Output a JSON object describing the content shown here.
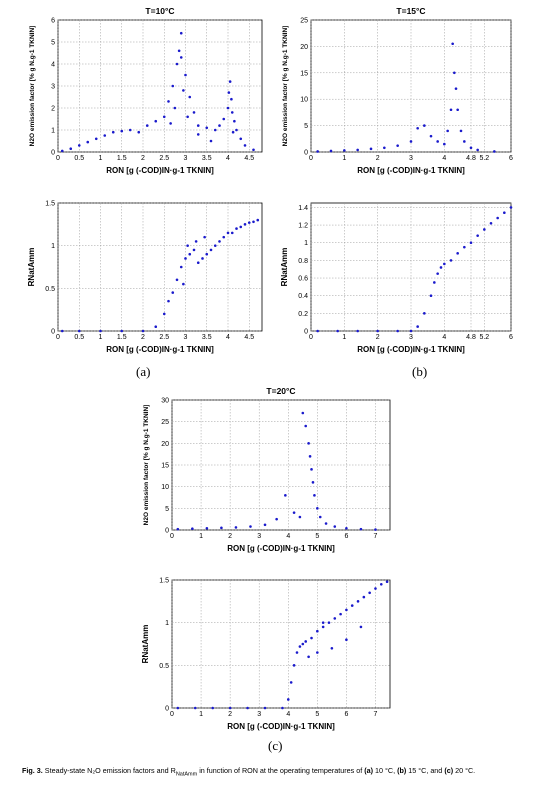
{
  "labels": {
    "a": "(a)",
    "b": "(b)",
    "c": "(c)"
  },
  "caption": {
    "figure": "Fig. 3.",
    "text": "Steady-state N₂O emission factors and R",
    "natamm_sub": "NatAmm",
    "text2": " in function of RON at the operating temperatures of ",
    "a": "(a)",
    "a_temp": " 10 °C, ",
    "b": "(b)",
    "b_temp": " 15 °C, and ",
    "c": "(c)",
    "c_temp": " 20 °C."
  },
  "chart_data": [
    {
      "id": "a-top",
      "type": "scatter",
      "title": "T=10°C",
      "xlabel": "RON [g (-COD)IN·g-1 TKNIN]",
      "ylabel": "N2O emission factor [% g N.g-1 TKNIN]",
      "xlim": [
        0,
        4.8
      ],
      "ylim": [
        0,
        6
      ],
      "xticks": [
        "0",
        "0.5",
        "1",
        "1.5",
        "2",
        "2.5",
        "3",
        "3.5",
        "4",
        "4.5"
      ],
      "xtick_values": [
        0,
        0.5,
        1,
        1.5,
        2,
        2.5,
        3,
        3.5,
        4,
        4.5
      ],
      "yticks": [
        "0",
        "1",
        "2",
        "3",
        "4",
        "5",
        "6"
      ],
      "ytick_values": [
        0,
        1,
        2,
        3,
        4,
        5,
        6
      ],
      "grid": true,
      "series": [
        {
          "color": "#1a1acc",
          "x": [
            0.1,
            0.3,
            0.5,
            0.7,
            0.9,
            1.1,
            1.3,
            1.5,
            1.7,
            1.9,
            2.1,
            2.3,
            2.5,
            2.6,
            2.7,
            2.8,
            2.9,
            3.0,
            3.1,
            3.2,
            3.3,
            3.5,
            3.7,
            3.8,
            3.9,
            4.0,
            4.05,
            4.1,
            4.15,
            4.2,
            4.3,
            4.4,
            4.6,
            2.85,
            2.9,
            2.95,
            2.75,
            2.65,
            3.05,
            3.3,
            3.6,
            4.02,
            4.08,
            4.12
          ],
          "y": [
            0.05,
            0.15,
            0.3,
            0.45,
            0.6,
            0.75,
            0.9,
            0.95,
            1.0,
            0.9,
            1.2,
            1.4,
            1.6,
            2.3,
            3.0,
            4.0,
            5.4,
            3.5,
            2.5,
            1.8,
            1.2,
            1.1,
            1.0,
            1.2,
            1.5,
            2.0,
            3.2,
            1.8,
            1.4,
            1.0,
            0.6,
            0.3,
            0.1,
            4.6,
            4.3,
            2.8,
            2.0,
            1.3,
            1.6,
            0.8,
            0.5,
            2.7,
            2.4,
            0.9
          ]
        }
      ]
    },
    {
      "id": "b-top",
      "type": "scatter",
      "title": "T=15°C",
      "xlabel": "RON [g (-COD)IN·g-1 TKNIN]",
      "ylabel": "N2O emission factor [% g N.g-1 TKNIN]",
      "xlim": [
        0,
        6
      ],
      "ylim": [
        0,
        25
      ],
      "xticks": [
        "0",
        "1",
        "2",
        "3",
        "4",
        "4.8",
        "5.2",
        "6"
      ],
      "xtick_values": [
        0,
        1,
        2,
        3,
        4,
        4.8,
        5.2,
        6
      ],
      "yticks": [
        "0",
        "5",
        "10",
        "15",
        "20",
        "25"
      ],
      "ytick_values": [
        0,
        5,
        10,
        15,
        20,
        25
      ],
      "grid": true,
      "series": [
        {
          "color": "#1a1acc",
          "x": [
            0.2,
            0.6,
            1.0,
            1.4,
            1.8,
            2.2,
            2.6,
            3.0,
            3.2,
            3.4,
            3.6,
            3.8,
            4.0,
            4.1,
            4.2,
            4.25,
            4.3,
            4.35,
            4.4,
            4.5,
            4.6,
            4.8,
            5.0,
            5.5
          ],
          "y": [
            0.1,
            0.2,
            0.3,
            0.4,
            0.6,
            0.8,
            1.2,
            2.0,
            4.5,
            5.0,
            3.0,
            2.0,
            1.5,
            4.0,
            8.0,
            20.5,
            15.0,
            12.0,
            8.0,
            4.0,
            2.0,
            0.8,
            0.4,
            0.1
          ]
        }
      ]
    },
    {
      "id": "a-bottom",
      "type": "scatter",
      "title": "",
      "xlabel": "RON [g (-COD)IN·g-1 TKNIN]",
      "ylabel": "RNatAmm",
      "xlim": [
        0,
        4.8
      ],
      "ylim": [
        0,
        1.5
      ],
      "xticks": [
        "0",
        "0.5",
        "1",
        "1.5",
        "2",
        "2.5",
        "3",
        "3.5",
        "4",
        "4.5"
      ],
      "xtick_values": [
        0,
        0.5,
        1,
        1.5,
        2,
        2.5,
        3,
        3.5,
        4,
        4.5
      ],
      "yticks": [
        "0",
        "0.5",
        "1",
        "1.5"
      ],
      "ytick_values": [
        0,
        0.5,
        1,
        1.5
      ],
      "grid": true,
      "series": [
        {
          "color": "#1a1acc",
          "x": [
            0.1,
            0.5,
            1.0,
            1.5,
            2.0,
            2.3,
            2.5,
            2.6,
            2.7,
            2.8,
            2.9,
            3.0,
            3.1,
            3.2,
            3.3,
            3.4,
            3.5,
            3.6,
            3.7,
            3.8,
            3.9,
            4.0,
            4.1,
            4.2,
            4.3,
            4.4,
            4.5,
            4.6,
            4.7,
            2.95,
            3.05,
            3.25,
            3.45
          ],
          "y": [
            0.0,
            0.0,
            0.0,
            0.0,
            0.0,
            0.05,
            0.2,
            0.35,
            0.45,
            0.6,
            0.75,
            0.85,
            0.9,
            0.95,
            0.8,
            0.85,
            0.9,
            0.95,
            1.0,
            1.05,
            1.1,
            1.15,
            1.15,
            1.2,
            1.22,
            1.25,
            1.27,
            1.28,
            1.3,
            0.55,
            1.0,
            1.05,
            1.1
          ]
        }
      ]
    },
    {
      "id": "b-bottom",
      "type": "scatter",
      "title": "",
      "xlabel": "RON [g (-COD)IN·g-1 TKNIN]",
      "ylabel": "RNatAmm",
      "xlim": [
        0,
        6
      ],
      "ylim": [
        0,
        1.45
      ],
      "xticks": [
        "0",
        "1",
        "2",
        "3",
        "4",
        "4.8",
        "5.2",
        "6"
      ],
      "xtick_values": [
        0,
        1,
        2,
        3,
        4,
        4.8,
        5.2,
        6
      ],
      "yticks": [
        "0",
        "0.2",
        "0.4",
        "0.6",
        "0.8",
        "1",
        "1.2",
        "1.4"
      ],
      "ytick_values": [
        0,
        0.2,
        0.4,
        0.6,
        0.8,
        1,
        1.2,
        1.4
      ],
      "grid": true,
      "series": [
        {
          "color": "#1a1acc",
          "x": [
            0.2,
            0.8,
            1.4,
            2.0,
            2.6,
            3.0,
            3.2,
            3.4,
            3.6,
            3.7,
            3.8,
            3.9,
            4.0,
            4.2,
            4.4,
            4.6,
            4.8,
            5.0,
            5.2,
            5.4,
            5.6,
            5.8,
            6.0
          ],
          "y": [
            0.0,
            0.0,
            0.0,
            0.0,
            0.0,
            0.0,
            0.05,
            0.2,
            0.4,
            0.55,
            0.65,
            0.72,
            0.76,
            0.8,
            0.88,
            0.95,
            1.0,
            1.08,
            1.15,
            1.22,
            1.28,
            1.34,
            1.4
          ]
        }
      ]
    },
    {
      "id": "c-top",
      "type": "scatter",
      "title": "T=20°C",
      "xlabel": "RON [g (-COD)IN·g-1 TKNIN]",
      "ylabel": "N2O emission factor [% g N.g-1 TKNIN]",
      "xlim": [
        0,
        7.5
      ],
      "ylim": [
        0,
        30
      ],
      "xticks": [
        "0",
        "1",
        "2",
        "3",
        "4",
        "5",
        "6",
        "7"
      ],
      "xtick_values": [
        0,
        1,
        2,
        3,
        4,
        5,
        6,
        7
      ],
      "yticks": [
        "0",
        "5",
        "10",
        "15",
        "20",
        "25",
        "30"
      ],
      "ytick_values": [
        0,
        5,
        10,
        15,
        20,
        25,
        30
      ],
      "grid": true,
      "series": [
        {
          "color": "#1a1acc",
          "x": [
            0.2,
            0.7,
            1.2,
            1.7,
            2.2,
            2.7,
            3.2,
            3.6,
            3.9,
            4.2,
            4.4,
            4.5,
            4.6,
            4.7,
            4.75,
            4.8,
            4.85,
            4.9,
            5.0,
            5.1,
            5.3,
            5.6,
            6.0,
            6.5,
            7.0
          ],
          "y": [
            0.2,
            0.3,
            0.4,
            0.5,
            0.6,
            0.8,
            1.2,
            2.5,
            8.0,
            4.0,
            3.0,
            27.0,
            24.0,
            20.0,
            17.0,
            14.0,
            11.0,
            8.0,
            5.0,
            3.0,
            1.5,
            0.8,
            0.4,
            0.2,
            0.1
          ]
        }
      ]
    },
    {
      "id": "c-bottom",
      "type": "scatter",
      "title": "",
      "xlabel": "RON [g (-COD)IN·g-1 TKNIN]",
      "ylabel": "RNatAmm",
      "xlim": [
        0,
        7.5
      ],
      "ylim": [
        0,
        1.5
      ],
      "xticks": [
        "0",
        "1",
        "2",
        "3",
        "4",
        "5",
        "6",
        "7"
      ],
      "xtick_values": [
        0,
        1,
        2,
        3,
        4,
        5,
        6,
        7
      ],
      "yticks": [
        "0",
        "0.5",
        "1",
        "1.5"
      ],
      "ytick_values": [
        0,
        0.5,
        1,
        1.5
      ],
      "grid": true,
      "series": [
        {
          "color": "#1a1acc",
          "x": [
            0.2,
            0.8,
            1.4,
            2.0,
            2.6,
            3.2,
            3.8,
            4.0,
            4.1,
            4.2,
            4.3,
            4.4,
            4.5,
            4.6,
            4.8,
            5.0,
            5.2,
            5.4,
            5.6,
            5.8,
            6.0,
            6.2,
            6.4,
            6.6,
            6.8,
            7.0,
            7.2,
            7.4,
            5.0,
            5.5,
            6.0,
            6.5,
            4.7,
            5.2
          ],
          "y": [
            0.0,
            0.0,
            0.0,
            0.0,
            0.0,
            0.0,
            0.0,
            0.1,
            0.3,
            0.5,
            0.65,
            0.72,
            0.75,
            0.78,
            0.82,
            0.9,
            0.95,
            1.0,
            1.05,
            1.1,
            1.15,
            1.2,
            1.25,
            1.3,
            1.35,
            1.4,
            1.45,
            1.48,
            0.65,
            0.7,
            0.8,
            0.95,
            0.6,
            1.0
          ]
        }
      ]
    }
  ]
}
